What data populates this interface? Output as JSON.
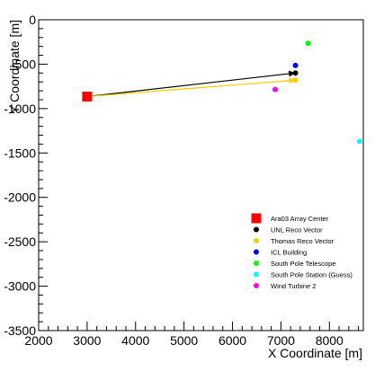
{
  "chart_data": {
    "type": "scatter",
    "title": "",
    "xlabel": "X Coordinate [m]",
    "ylabel": "Y Coordinate [m]",
    "xlim": [
      2000,
      8700
    ],
    "ylim": [
      -3500,
      0
    ],
    "xticks": [
      2000,
      3000,
      4000,
      5000,
      6000,
      7000,
      8000
    ],
    "yticks": [
      0,
      -500,
      -1000,
      -1500,
      -2000,
      -2500,
      -3000,
      -3500
    ],
    "grid": false,
    "legend_position": "bottom-right",
    "series": [
      {
        "name": "Ara03 Array Center",
        "marker": "square",
        "color": "#ff0000",
        "points": [
          [
            3000,
            -865
          ]
        ]
      },
      {
        "name": "UNL Reco Vector",
        "marker": "circle",
        "color": "#000000",
        "points": [
          [
            7300,
            -600
          ]
        ],
        "arrow_from": [
          3000,
          -865
        ]
      },
      {
        "name": "Thomas Reco Vector",
        "marker": "circle",
        "color": "#ffcc00",
        "points": [
          [
            7300,
            -680
          ]
        ],
        "arrow_from": [
          3000,
          -865
        ]
      },
      {
        "name": "ICL Building",
        "marker": "circle",
        "color": "#0000ff",
        "points": [
          [
            7300,
            -515
          ]
        ]
      },
      {
        "name": "South Pole Telescope",
        "marker": "circle",
        "color": "#00ff00",
        "points": [
          [
            7560,
            -265
          ]
        ]
      },
      {
        "name": "South Pole Station (Guess)",
        "marker": "circle",
        "color": "#00ffff",
        "points": [
          [
            8620,
            -1370
          ]
        ]
      },
      {
        "name": "Wind Turbine 2",
        "marker": "circle",
        "color": "#ff00ff",
        "points": [
          [
            6880,
            -785
          ]
        ]
      }
    ]
  }
}
